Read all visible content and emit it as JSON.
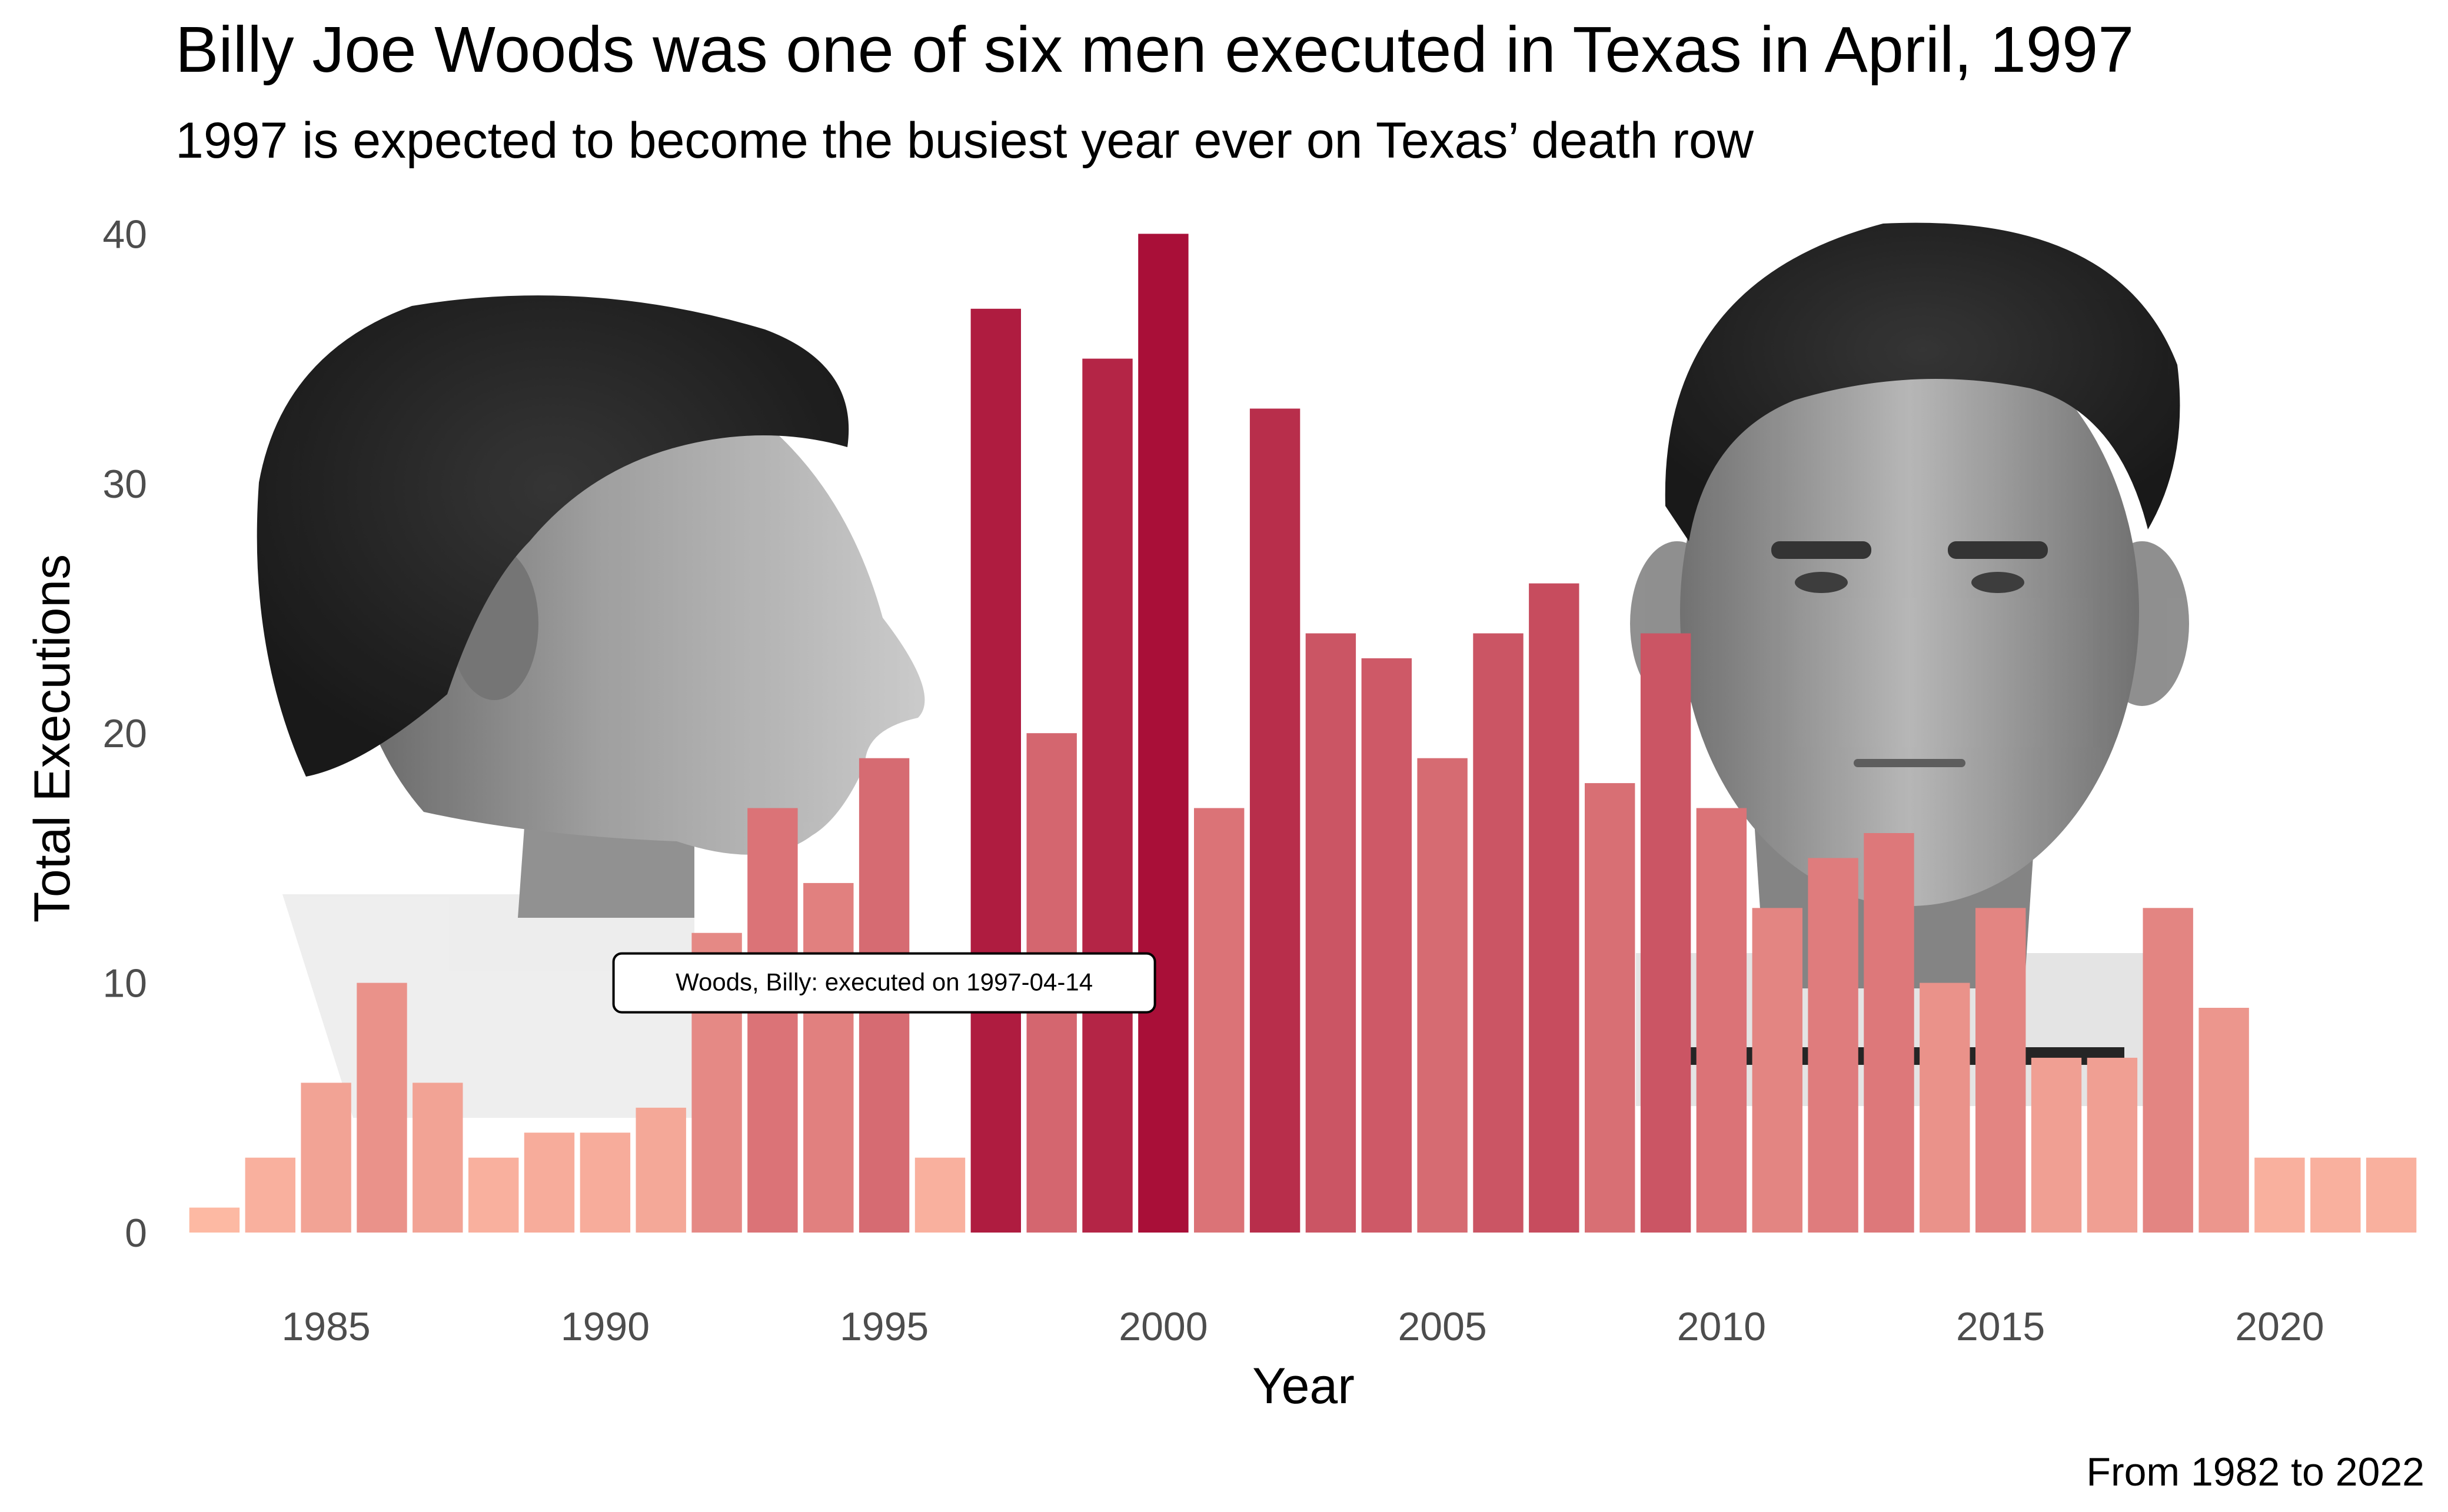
{
  "chart_data": {
    "type": "bar",
    "title": "Billy Joe Woods was one of six men executed in Texas in April, 1997",
    "subtitle": "1997 is expected to become the busiest year ever on Texas’ death row",
    "xlabel": "Year",
    "ylabel": "Total Executions",
    "caption": "From 1982 to 2022",
    "xlim": [
      1982.3,
      2022.7
    ],
    "ylim": [
      0,
      41
    ],
    "x_ticks": [
      1985,
      1990,
      1995,
      2000,
      2005,
      2010,
      2015,
      2020
    ],
    "y_ticks": [
      0,
      10,
      20,
      30,
      40
    ],
    "grid": false,
    "x": [
      1983,
      1984,
      1985,
      1986,
      1987,
      1988,
      1989,
      1990,
      1991,
      1992,
      1993,
      1994,
      1995,
      1996,
      1997,
      1998,
      1999,
      2000,
      2001,
      2002,
      2003,
      2004,
      2005,
      2006,
      2007,
      2008,
      2009,
      2010,
      2011,
      2012,
      2013,
      2014,
      2015,
      2016,
      2017,
      2018,
      2019,
      2020,
      2021,
      2022
    ],
    "values": [
      1,
      3,
      6,
      10,
      6,
      3,
      4,
      4,
      5,
      12,
      17,
      14,
      19,
      3,
      37,
      20,
      35,
      40,
      17,
      33,
      24,
      23,
      19,
      24,
      26,
      18,
      24,
      17,
      13,
      15,
      16,
      10,
      13,
      7,
      7,
      13,
      9,
      3,
      3,
      3
    ],
    "color_scale": {
      "low": "#fdb9a3",
      "high": "#a90f38"
    },
    "annotation": {
      "label": "Woods, Billy: executed on 1997-04-14",
      "x": 1995.0,
      "y": 10
    },
    "background_images": [
      {
        "name": "billy-joe-woods-profile-photo"
      },
      {
        "name": "billy-joe-woods-frontal-photo"
      }
    ]
  }
}
